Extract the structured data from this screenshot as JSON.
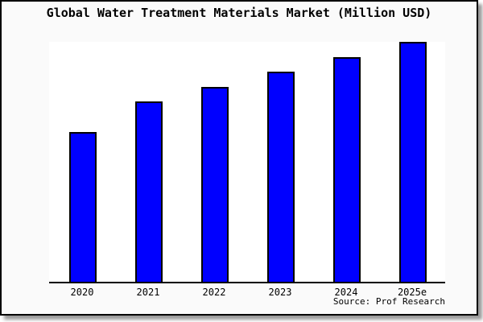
{
  "frame": {
    "background": "#fafafa",
    "border_color": "#000000",
    "shadow_color": "#999999"
  },
  "chart_data": {
    "type": "bar",
    "title": "Global Water Treatment Materials Market (Million USD)",
    "categories": [
      "2020",
      "2021",
      "2022",
      "2023",
      "2024",
      "2025e"
    ],
    "values": [
      62.4,
      75.0,
      81.2,
      87.6,
      93.6,
      100.0
    ],
    "value_basis": "percent of tallest bar (2025e = 100); chart displays no y-axis scale or data labels",
    "xlabel": "",
    "ylabel": "",
    "ylim": [
      0,
      100
    ],
    "grid": false,
    "legend": false,
    "bar_color": "#0000ff",
    "bar_border_color": "#000000",
    "plot_background": "#ffffff",
    "axis_color": "#000000",
    "source": "Source: Prof Research"
  }
}
